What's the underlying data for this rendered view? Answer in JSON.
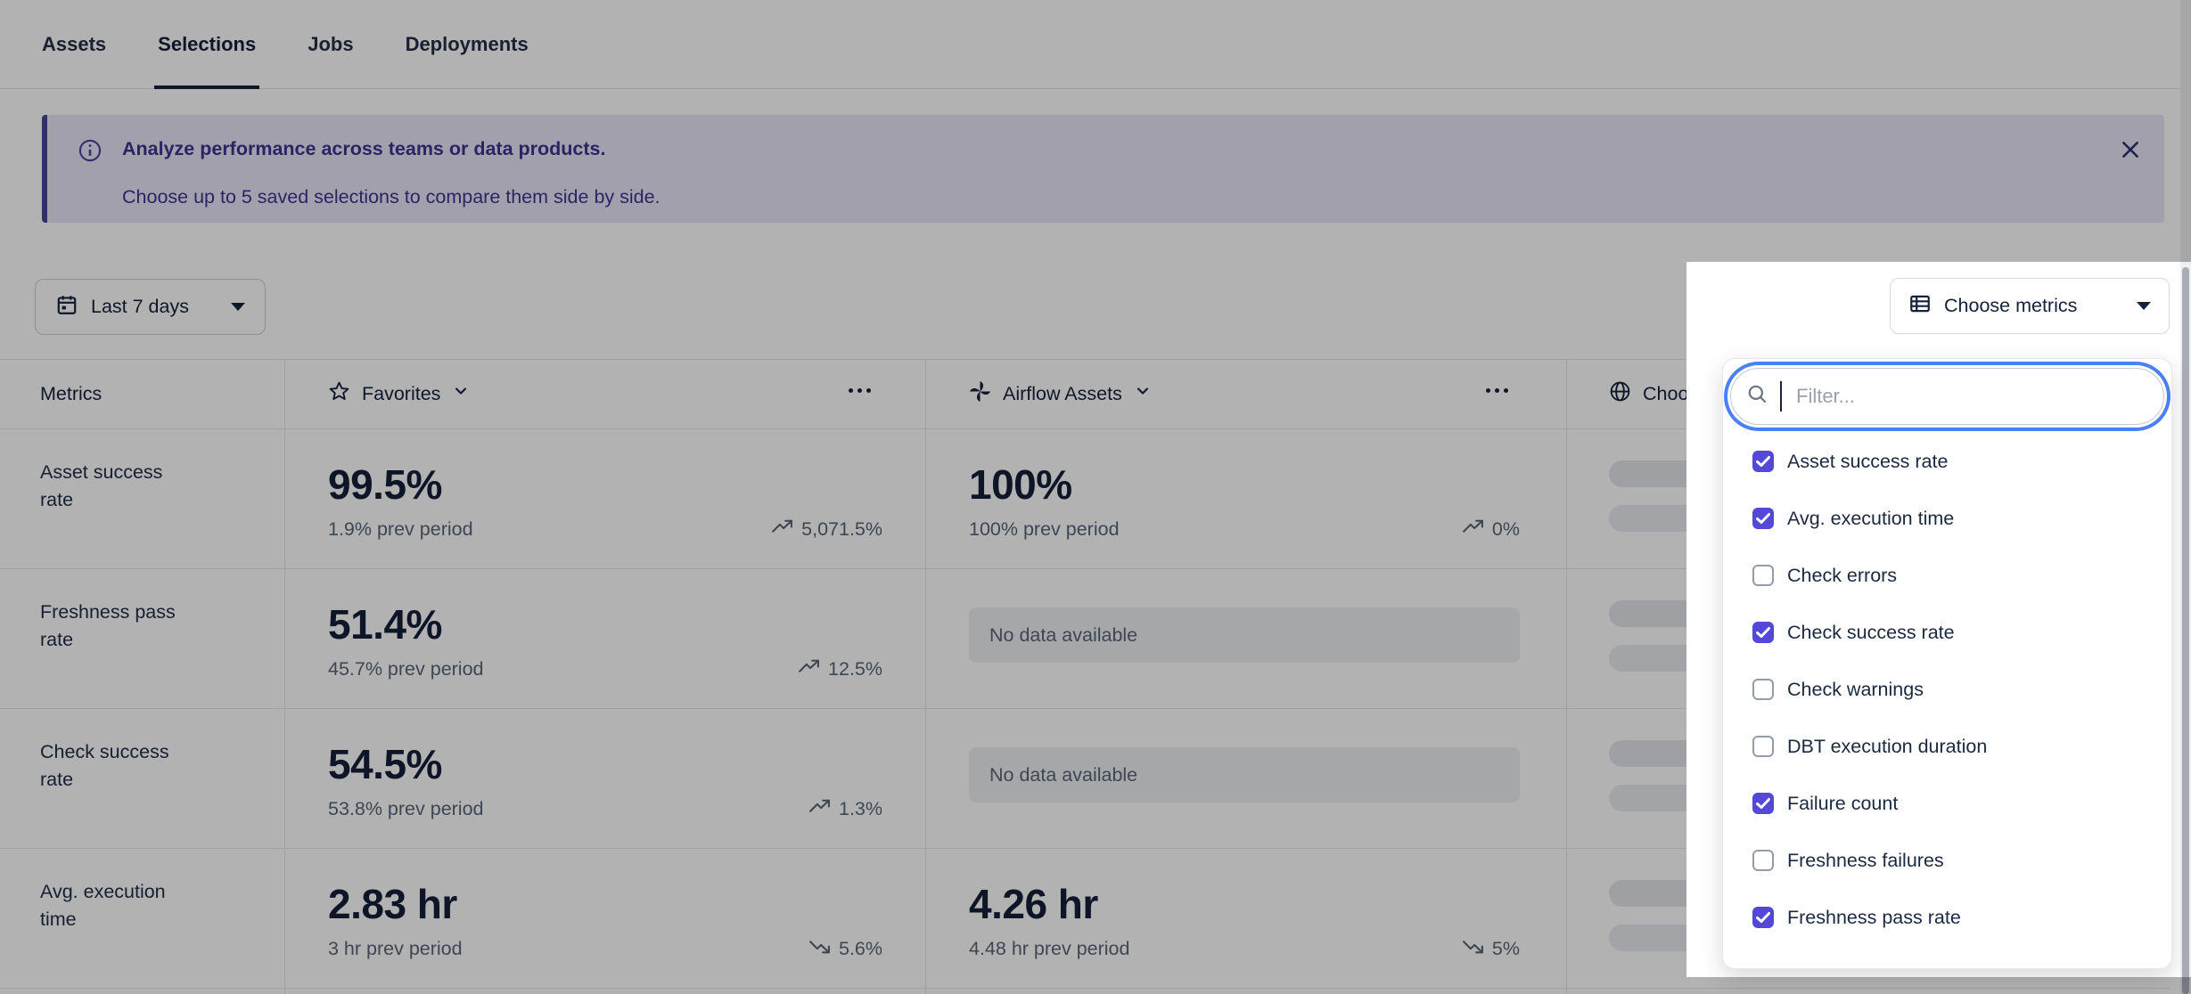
{
  "nav": {
    "tabs": [
      {
        "label": "Assets",
        "active": false
      },
      {
        "label": "Selections",
        "active": true
      },
      {
        "label": "Jobs",
        "active": false
      },
      {
        "label": "Deployments",
        "active": false
      }
    ]
  },
  "banner": {
    "title": "Analyze performance across teams or data products.",
    "subtitle": "Choose up to 5 saved selections to compare them side by side."
  },
  "toolbar": {
    "date_range_label": "Last 7 days",
    "choose_metrics_label": "Choose metrics"
  },
  "table": {
    "metrics_header": "Metrics",
    "columns": [
      {
        "title": "Favorites",
        "icon": "star-icon",
        "has_menu": true,
        "has_chevron": true
      },
      {
        "title": "Airflow Assets",
        "icon": "pinwheel-icon",
        "has_menu": true,
        "has_chevron": true
      },
      {
        "title": "Choose...",
        "icon": "globe-icon",
        "has_menu": false,
        "has_chevron": false
      }
    ],
    "no_data_label": "No data available",
    "rows": [
      {
        "metric": "Asset success rate",
        "cells": [
          {
            "type": "value",
            "value": "99.5%",
            "sub": "1.9% prev period",
            "trend": "up",
            "trend_value": "5,071.5%"
          },
          {
            "type": "value",
            "value": "100%",
            "sub": "100% prev period",
            "trend": "up",
            "trend_value": "0%"
          },
          {
            "type": "skeleton"
          }
        ]
      },
      {
        "metric": "Freshness pass rate",
        "cells": [
          {
            "type": "value",
            "value": "51.4%",
            "sub": "45.7% prev period",
            "trend": "up",
            "trend_value": "12.5%"
          },
          {
            "type": "no_data"
          },
          {
            "type": "skeleton"
          }
        ]
      },
      {
        "metric": "Check success rate",
        "cells": [
          {
            "type": "value",
            "value": "54.5%",
            "sub": "53.8% prev period",
            "trend": "up",
            "trend_value": "1.3%"
          },
          {
            "type": "no_data"
          },
          {
            "type": "skeleton"
          }
        ]
      },
      {
        "metric": "Avg. execution time",
        "cells": [
          {
            "type": "value",
            "value": "2.83 hr",
            "sub": "3 hr prev period",
            "trend": "down",
            "trend_value": "5.6%"
          },
          {
            "type": "value",
            "value": "4.26 hr",
            "sub": "4.48 hr prev period",
            "trend": "down",
            "trend_value": "5%"
          },
          {
            "type": "skeleton"
          }
        ]
      }
    ]
  },
  "metrics_popover": {
    "filter_placeholder": "Filter...",
    "options": [
      {
        "label": "Asset success rate",
        "checked": true
      },
      {
        "label": "Avg. execution time",
        "checked": true
      },
      {
        "label": "Check errors",
        "checked": false
      },
      {
        "label": "Check success rate",
        "checked": true
      },
      {
        "label": "Check warnings",
        "checked": false
      },
      {
        "label": "DBT execution duration",
        "checked": false
      },
      {
        "label": "Failure count",
        "checked": true
      },
      {
        "label": "Freshness failures",
        "checked": false
      },
      {
        "label": "Freshness pass rate",
        "checked": true
      }
    ]
  },
  "colors": {
    "accent_indigo": "#5448D8",
    "focus_blue": "#4A80F5",
    "banner_bg": "#EAE6F9",
    "banner_text": "#3B3490",
    "banner_border": "#4A4497",
    "text_primary": "#15213A",
    "text_secondary": "#5A6577",
    "border": "#E3E5E9",
    "chip_bg": "#EDEFF3",
    "skeleton": "#E3E6EB"
  }
}
